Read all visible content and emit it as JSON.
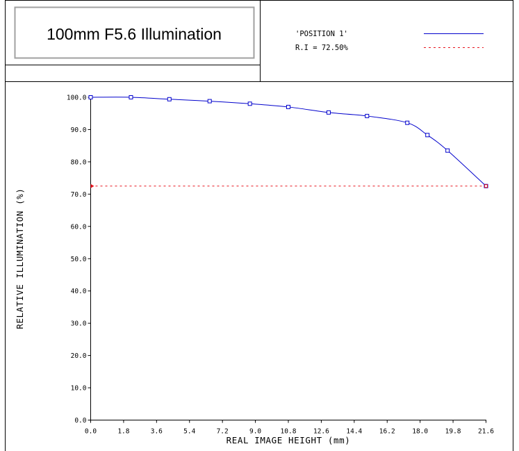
{
  "header": {
    "title": "100mm F5.6 Illumination",
    "legend_series": "'POSITION 1'",
    "legend_ri": "R.I = 72.50%"
  },
  "colors": {
    "curve": "#0000cc",
    "reference": "#e8141e",
    "frame": "#000000",
    "title_box_border": "#a0a0a0"
  },
  "chart_data": {
    "type": "line",
    "title": "100mm F5.6 Illumination",
    "xlabel": "REAL IMAGE HEIGHT (mm)",
    "ylabel": "RELATIVE ILLUMINATION (%)",
    "xlim": [
      0,
      21.6
    ],
    "ylim": [
      0,
      100
    ],
    "xticks": [
      "0.0",
      "1.8",
      "3.6",
      "5.4",
      "7.2",
      "9.0",
      "10.8",
      "12.6",
      "14.4",
      "16.2",
      "18.0",
      "19.8",
      "21.6"
    ],
    "yticks": [
      "0.0",
      "10.0",
      "20.0",
      "30.0",
      "40.0",
      "50.0",
      "60.0",
      "70.0",
      "80.0",
      "90.0",
      "100.0"
    ],
    "grid": false,
    "series": [
      {
        "name": "'POSITION 1'",
        "style": "solid",
        "x": [
          0.0,
          2.2,
          4.3,
          6.5,
          8.7,
          10.8,
          13.0,
          15.1,
          17.3,
          18.4,
          19.5,
          21.6
        ],
        "y": [
          100.0,
          100.0,
          99.4,
          98.8,
          98.0,
          97.0,
          95.3,
          94.2,
          92.1,
          88.3,
          83.5,
          72.5
        ],
        "markers": [
          true,
          true,
          true,
          true,
          true,
          true,
          true,
          true,
          true,
          true,
          true,
          true
        ]
      },
      {
        "name": "R.I = 72.50%",
        "style": "dashed",
        "x": [
          0.0,
          21.6
        ],
        "y": [
          72.5,
          72.5
        ]
      }
    ]
  }
}
